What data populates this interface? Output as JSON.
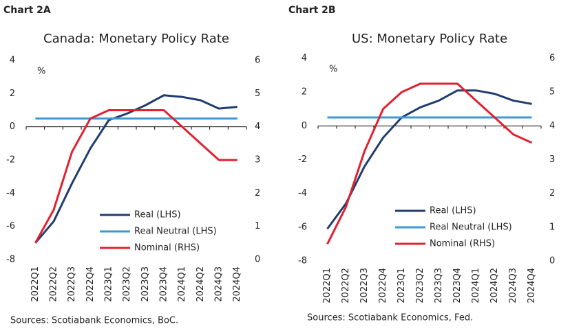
{
  "chart_data": [
    {
      "type": "line",
      "label": "Chart 2A",
      "title": "Canada: Monetary Policy Rate",
      "unit_label": "%",
      "categories": [
        "2022Q1",
        "2022Q2",
        "2022Q3",
        "2022Q4",
        "2023Q1",
        "2023Q2",
        "2023Q3",
        "2023Q4",
        "2024Q1",
        "2024Q2",
        "2024Q3",
        "2024Q4"
      ],
      "series": [
        {
          "name": "Real (LHS)",
          "color": "#1f3d6e",
          "axis": "y",
          "values": [
            -7.0,
            -5.7,
            -3.4,
            -1.3,
            0.4,
            0.8,
            1.3,
            1.9,
            1.8,
            1.6,
            1.1,
            1.2
          ]
        },
        {
          "name": "Real Neutral (LHS)",
          "color": "#3b9ad4",
          "axis": "y",
          "values": [
            0.5,
            0.5,
            0.5,
            0.5,
            0.5,
            0.5,
            0.5,
            0.5,
            0.5,
            0.5,
            0.5,
            0.5
          ]
        },
        {
          "name": "Nominal (RHS)",
          "color": "#e3202f",
          "axis": "y2",
          "values": [
            0.5,
            1.5,
            3.25,
            4.25,
            4.5,
            4.5,
            4.5,
            4.5,
            4.0,
            3.5,
            3.0,
            3.0
          ]
        }
      ],
      "ylim": [
        -8,
        4
      ],
      "yticks": [
        -8,
        -6,
        -4,
        -2,
        0,
        2,
        4
      ],
      "y2lim": [
        0,
        6
      ],
      "y2ticks": [
        0,
        1,
        2,
        3,
        4,
        5,
        6
      ],
      "source": "Sources: Scotiabank Economics, BoC."
    },
    {
      "type": "line",
      "label": "Chart 2B",
      "title": "US: Monetary Policy Rate",
      "unit_label": "%",
      "categories": [
        "2022Q1",
        "2022Q2",
        "2022Q3",
        "2022Q4",
        "2023Q1",
        "2023Q2",
        "2023Q3",
        "2023Q4",
        "2024Q1",
        "2024Q2",
        "2024Q3",
        "2024Q4"
      ],
      "series": [
        {
          "name": "Real (LHS)",
          "color": "#1f3d6e",
          "axis": "y",
          "values": [
            -6.1,
            -4.6,
            -2.4,
            -0.7,
            0.5,
            1.1,
            1.5,
            2.1,
            2.1,
            1.9,
            1.5,
            1.3
          ]
        },
        {
          "name": "Real Neutral (LHS)",
          "color": "#3b9ad4",
          "axis": "y",
          "values": [
            0.5,
            0.5,
            0.5,
            0.5,
            0.5,
            0.5,
            0.5,
            0.5,
            0.5,
            0.5,
            0.5,
            0.5
          ]
        },
        {
          "name": "Nominal (RHS)",
          "color": "#e3202f",
          "axis": "y2",
          "values": [
            0.5,
            1.6,
            3.25,
            4.5,
            5.0,
            5.25,
            5.25,
            5.25,
            4.75,
            4.25,
            3.75,
            3.5
          ]
        }
      ],
      "ylim": [
        -8,
        4
      ],
      "yticks": [
        -8,
        -6,
        -4,
        -2,
        0,
        2,
        4
      ],
      "y2lim": [
        0,
        6
      ],
      "y2ticks": [
        0,
        1,
        2,
        3,
        4,
        5,
        6
      ],
      "source": "Sources: Scotiabank Economics, Fed."
    }
  ]
}
